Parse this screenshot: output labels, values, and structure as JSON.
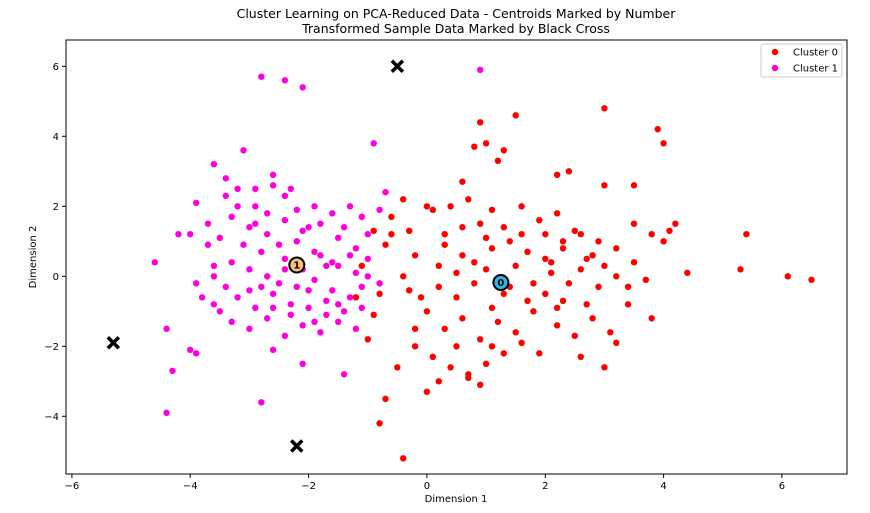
{
  "chart_data": {
    "type": "scatter",
    "title": [
      "Cluster Learning on PCA-Reduced Data - Centroids Marked by Number",
      "Transformed Sample Data Marked by Black Cross"
    ],
    "xlabel": "Dimension 1",
    "ylabel": "Dimension 2",
    "xlim": [
      -6.1,
      7.1
    ],
    "ylim": [
      -5.65,
      6.75
    ],
    "xticks": [
      -6,
      -4,
      -2,
      0,
      2,
      4,
      6
    ],
    "yticks": [
      -4,
      -2,
      0,
      2,
      4,
      6
    ],
    "xtick_labels": [
      "−6",
      "−4",
      "−2",
      "0",
      "2",
      "4",
      "6"
    ],
    "ytick_labels": [
      "−4",
      "−2",
      "0",
      "2",
      "4",
      "6"
    ],
    "grid": false,
    "legend": {
      "placement": "top-right",
      "entries": [
        "Cluster 0",
        "Cluster 1"
      ]
    },
    "series": [
      {
        "name": "Cluster 0",
        "color": "#ff0000",
        "points": [
          [
            -0.4,
            2.2
          ],
          [
            -0.6,
            1.2
          ],
          [
            -0.3,
            1.3
          ],
          [
            -0.2,
            0.6
          ],
          [
            0.1,
            1.9
          ],
          [
            0.4,
            2.0
          ],
          [
            0.7,
            2.2
          ],
          [
            0.9,
            1.5
          ],
          [
            1.1,
            1.9
          ],
          [
            1.3,
            1.4
          ],
          [
            1.6,
            2.0
          ],
          [
            2.0,
            1.2
          ],
          [
            2.3,
            1.0
          ],
          [
            2.6,
            1.2
          ],
          [
            2.9,
            1.0
          ],
          [
            3.2,
            0.8
          ],
          [
            3.5,
            1.5
          ],
          [
            3.8,
            1.2
          ],
          [
            4.2,
            1.5
          ],
          [
            4.0,
            1.0
          ],
          [
            0.8,
            3.7
          ],
          [
            1.0,
            3.8
          ],
          [
            1.3,
            3.6
          ],
          [
            1.2,
            3.3
          ],
          [
            0.9,
            4.4
          ],
          [
            1.5,
            4.6
          ],
          [
            2.2,
            2.9
          ],
          [
            2.4,
            3.0
          ],
          [
            3.0,
            4.8
          ],
          [
            3.9,
            4.2
          ],
          [
            4.0,
            3.8
          ],
          [
            3.0,
            2.6
          ],
          [
            3.5,
            2.6
          ],
          [
            -0.4,
            0.0
          ],
          [
            -0.3,
            -0.4
          ],
          [
            -0.1,
            -0.6
          ],
          [
            0.2,
            -0.3
          ],
          [
            0.5,
            0.1
          ],
          [
            0.8,
            -0.2
          ],
          [
            1.0,
            0.2
          ],
          [
            1.3,
            -0.5
          ],
          [
            1.5,
            0.3
          ],
          [
            1.8,
            -0.2
          ],
          [
            2.1,
            0.4
          ],
          [
            2.3,
            -0.7
          ],
          [
            2.6,
            0.2
          ],
          [
            2.9,
            -0.3
          ],
          [
            3.2,
            0.0
          ],
          [
            3.5,
            0.4
          ],
          [
            3.7,
            -0.1
          ],
          [
            0.0,
            -1.0
          ],
          [
            0.3,
            -1.5
          ],
          [
            0.6,
            -1.2
          ],
          [
            0.9,
            -1.8
          ],
          [
            1.2,
            -1.3
          ],
          [
            1.5,
            -1.6
          ],
          [
            1.8,
            -1.0
          ],
          [
            2.2,
            -1.4
          ],
          [
            2.5,
            -1.7
          ],
          [
            2.8,
            -1.2
          ],
          [
            3.1,
            -1.6
          ],
          [
            3.4,
            -0.8
          ],
          [
            3.8,
            -1.2
          ],
          [
            -0.2,
            -2.0
          ],
          [
            0.1,
            -2.3
          ],
          [
            0.4,
            -2.6
          ],
          [
            0.7,
            -2.9
          ],
          [
            1.0,
            -2.5
          ],
          [
            1.3,
            -2.2
          ],
          [
            1.6,
            -1.9
          ],
          [
            0.0,
            -3.3
          ],
          [
            0.2,
            -3.0
          ],
          [
            0.7,
            -2.8
          ],
          [
            0.9,
            -3.1
          ],
          [
            -0.5,
            -2.6
          ],
          [
            -0.7,
            -3.5
          ],
          [
            -0.8,
            -4.2
          ],
          [
            -0.4,
            -5.2
          ],
          [
            2.6,
            -2.3
          ],
          [
            3.0,
            -2.6
          ],
          [
            3.2,
            -1.9
          ],
          [
            -0.9,
            -1.1
          ],
          [
            -1.0,
            -1.8
          ],
          [
            -0.8,
            -0.5
          ],
          [
            -1.1,
            0.3
          ],
          [
            -0.9,
            1.3
          ],
          [
            -0.7,
            0.9
          ],
          [
            -1.2,
            -0.6
          ],
          [
            0.3,
            0.9
          ],
          [
            0.6,
            0.6
          ],
          [
            1.1,
            0.8
          ],
          [
            1.4,
            1.0
          ],
          [
            1.7,
            0.7
          ],
          [
            2.0,
            0.5
          ],
          [
            2.3,
            0.8
          ],
          [
            2.7,
            0.5
          ],
          [
            3.0,
            0.3
          ],
          [
            0.2,
            0.3
          ],
          [
            0.5,
            -0.6
          ],
          [
            0.8,
            0.4
          ],
          [
            1.1,
            -0.9
          ],
          [
            1.4,
            -0.3
          ],
          [
            1.7,
            -0.7
          ],
          [
            2.0,
            -0.5
          ],
          [
            2.4,
            -0.2
          ],
          [
            2.7,
            -0.8
          ],
          [
            0.3,
            1.2
          ],
          [
            0.6,
            1.4
          ],
          [
            1.0,
            1.1
          ],
          [
            1.9,
            1.6
          ],
          [
            2.2,
            1.8
          ],
          [
            2.5,
            1.3
          ],
          [
            2.8,
            0.6
          ],
          [
            -0.2,
            -1.5
          ],
          [
            0.5,
            -2.0
          ],
          [
            1.1,
            -2.0
          ],
          [
            1.9,
            -2.2
          ],
          [
            2.2,
            -0.9
          ],
          [
            4.4,
            0.1
          ],
          [
            5.3,
            0.2
          ],
          [
            5.4,
            1.2
          ],
          [
            6.1,
            0.0
          ],
          [
            6.5,
            -0.1
          ],
          [
            3.4,
            -0.3
          ],
          [
            4.1,
            1.3
          ],
          [
            -0.6,
            1.7
          ],
          [
            0.0,
            2.0
          ],
          [
            0.6,
            2.7
          ],
          [
            1.6,
            1.2
          ],
          [
            2.1,
            0.1
          ]
        ]
      },
      {
        "name": "Cluster 1",
        "color": "#ff00dd",
        "points": [
          [
            -2.8,
            5.7
          ],
          [
            -2.4,
            5.6
          ],
          [
            -2.1,
            5.4
          ],
          [
            0.9,
            5.9
          ],
          [
            -3.6,
            3.2
          ],
          [
            -3.4,
            2.8
          ],
          [
            -3.2,
            2.5
          ],
          [
            -3.1,
            3.6
          ],
          [
            -2.9,
            2.5
          ],
          [
            -2.6,
            2.6
          ],
          [
            -2.4,
            2.3
          ],
          [
            -2.2,
            1.9
          ],
          [
            -1.9,
            2.0
          ],
          [
            -1.6,
            1.8
          ],
          [
            -1.3,
            2.0
          ],
          [
            -1.1,
            1.7
          ],
          [
            -0.9,
            3.8
          ],
          [
            -0.7,
            2.4
          ],
          [
            -3.9,
            2.1
          ],
          [
            -4.0,
            1.2
          ],
          [
            -3.7,
            1.5
          ],
          [
            -3.5,
            1.1
          ],
          [
            -3.3,
            1.7
          ],
          [
            -3.0,
            1.4
          ],
          [
            -2.7,
            1.2
          ],
          [
            -2.4,
            1.6
          ],
          [
            -2.1,
            1.3
          ],
          [
            -1.8,
            1.5
          ],
          [
            -1.5,
            1.1
          ],
          [
            -1.2,
            0.8
          ],
          [
            -1.0,
            1.2
          ],
          [
            -0.8,
            1.9
          ],
          [
            -4.6,
            0.4
          ],
          [
            -3.9,
            -0.2
          ],
          [
            -3.6,
            0.0
          ],
          [
            -3.3,
            0.4
          ],
          [
            -3.0,
            0.2
          ],
          [
            -2.7,
            0.0
          ],
          [
            -2.4,
            0.5
          ],
          [
            -2.1,
            0.2
          ],
          [
            -1.8,
            0.6
          ],
          [
            -1.5,
            0.3
          ],
          [
            -1.2,
            0.1
          ],
          [
            -1.0,
            0.5
          ],
          [
            -3.8,
            -0.6
          ],
          [
            -3.5,
            -1.0
          ],
          [
            -3.2,
            -0.6
          ],
          [
            -2.9,
            -0.9
          ],
          [
            -2.6,
            -0.5
          ],
          [
            -2.3,
            -0.8
          ],
          [
            -2.0,
            -0.4
          ],
          [
            -1.7,
            -0.7
          ],
          [
            -1.4,
            -1.0
          ],
          [
            -1.2,
            -1.5
          ],
          [
            -3.3,
            -1.3
          ],
          [
            -3.0,
            -1.5
          ],
          [
            -2.7,
            -1.2
          ],
          [
            -2.4,
            -1.7
          ],
          [
            -2.1,
            -1.4
          ],
          [
            -1.8,
            -1.6
          ],
          [
            -1.5,
            -1.3
          ],
          [
            -2.6,
            -2.1
          ],
          [
            -2.1,
            -2.5
          ],
          [
            -4.4,
            -1.5
          ],
          [
            -4.0,
            -2.1
          ],
          [
            -3.9,
            -2.2
          ],
          [
            -4.3,
            -2.7
          ],
          [
            -4.4,
            -3.9
          ],
          [
            -2.8,
            -3.6
          ],
          [
            -1.4,
            -2.8
          ],
          [
            -2.5,
            0.9
          ],
          [
            -2.2,
            1.0
          ],
          [
            -1.9,
            0.7
          ],
          [
            -1.6,
            0.4
          ],
          [
            -1.3,
            0.6
          ],
          [
            -3.1,
            0.9
          ],
          [
            -2.8,
            0.7
          ],
          [
            -3.6,
            0.3
          ],
          [
            -2.5,
            -0.2
          ],
          [
            -2.2,
            -0.3
          ],
          [
            -1.9,
            -0.1
          ],
          [
            -1.6,
            -0.4
          ],
          [
            -1.3,
            -0.6
          ],
          [
            -1.1,
            -0.9
          ],
          [
            -3.4,
            -0.3
          ],
          [
            -2.8,
            -0.3
          ],
          [
            -2.0,
            -0.9
          ],
          [
            -1.7,
            -1.1
          ],
          [
            -2.9,
            2.0
          ],
          [
            -3.2,
            2.0
          ],
          [
            -2.6,
            2.9
          ],
          [
            -2.3,
            2.5
          ],
          [
            -3.4,
            2.3
          ],
          [
            -4.2,
            1.2
          ],
          [
            -3.6,
            -0.8
          ],
          [
            -2.3,
            -1.1
          ],
          [
            -1.0,
            0.0
          ],
          [
            -0.8,
            -0.2
          ],
          [
            -1.5,
            -0.8
          ],
          [
            -2.7,
            1.8
          ],
          [
            -2.0,
            1.4
          ],
          [
            -1.4,
            1.4
          ],
          [
            -3.7,
            0.9
          ],
          [
            -3.0,
            -0.4
          ],
          [
            -2.4,
            0.2
          ],
          [
            -1.7,
            0.3
          ],
          [
            -1.1,
            -0.3
          ],
          [
            -2.9,
            1.5
          ],
          [
            -2.6,
            -0.9
          ],
          [
            -1.9,
            -1.3
          ]
        ]
      }
    ],
    "centroids": [
      {
        "label": "0",
        "x": 1.25,
        "y": -0.18,
        "fill": "#2bb7ec"
      },
      {
        "label": "1",
        "x": -2.2,
        "y": 0.32,
        "fill": "#fbbf7a"
      }
    ],
    "samples": [
      {
        "x": -0.5,
        "y": 6.0
      },
      {
        "x": -5.3,
        "y": -1.9
      },
      {
        "x": -2.2,
        "y": -4.85
      }
    ]
  }
}
